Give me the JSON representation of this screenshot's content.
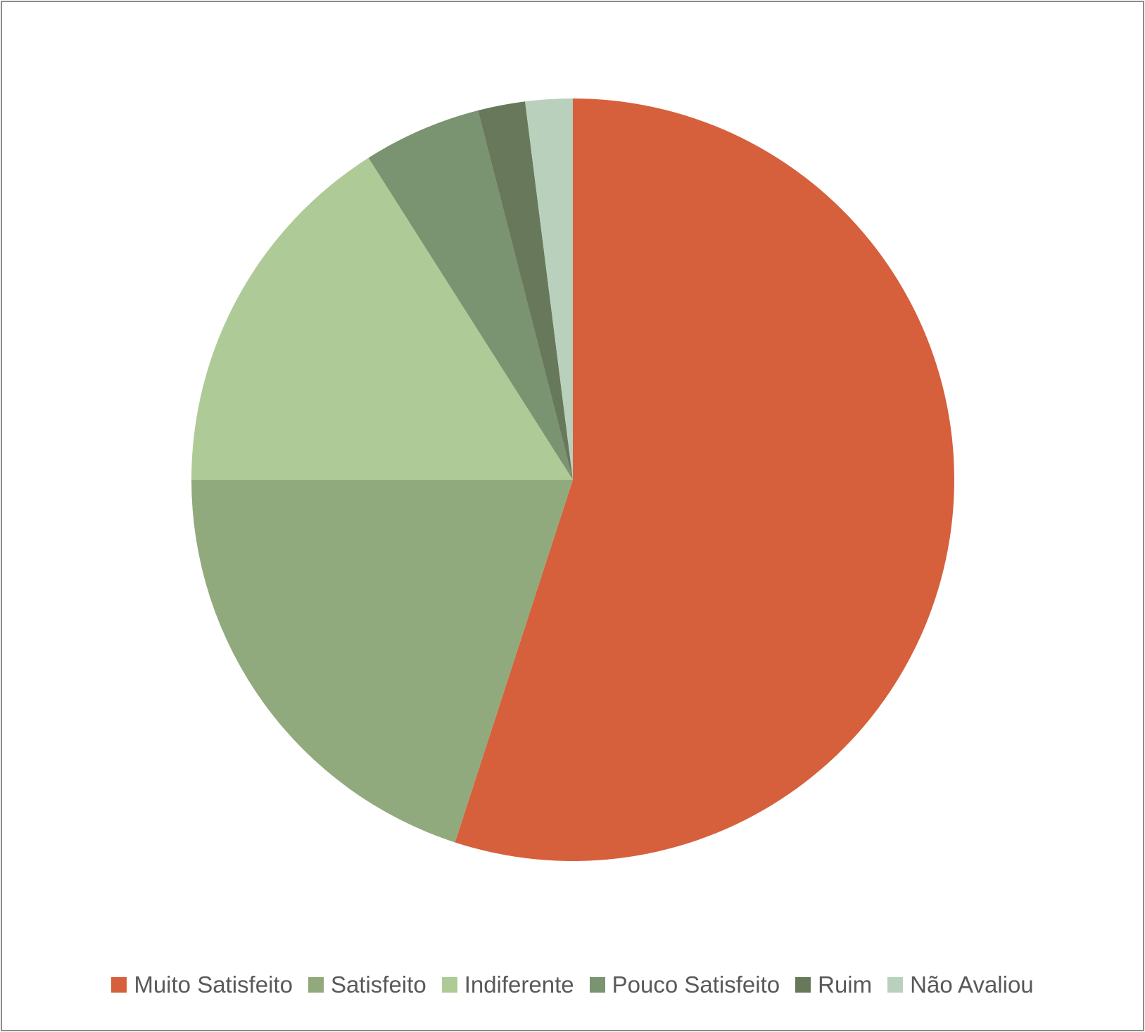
{
  "chart_data": {
    "type": "pie",
    "title": "",
    "start_angle_deg": 0,
    "direction": "clockwise",
    "legend_position": "bottom",
    "slices": [
      {
        "label": "Muito Satisfeito",
        "value": 55.0,
        "color": "#D6603C"
      },
      {
        "label": "Satisfeito",
        "value": 20.0,
        "color": "#91AA7D"
      },
      {
        "label": "Indiferente",
        "value": 16.0,
        "color": "#AECB97"
      },
      {
        "label": "Pouco Satisfeito",
        "value": 5.0,
        "color": "#7A9370"
      },
      {
        "label": "Ruim",
        "value": 2.0,
        "color": "#67795A"
      },
      {
        "label": "Não Avaliou",
        "value": 2.0,
        "color": "#B9D1BC"
      }
    ]
  }
}
